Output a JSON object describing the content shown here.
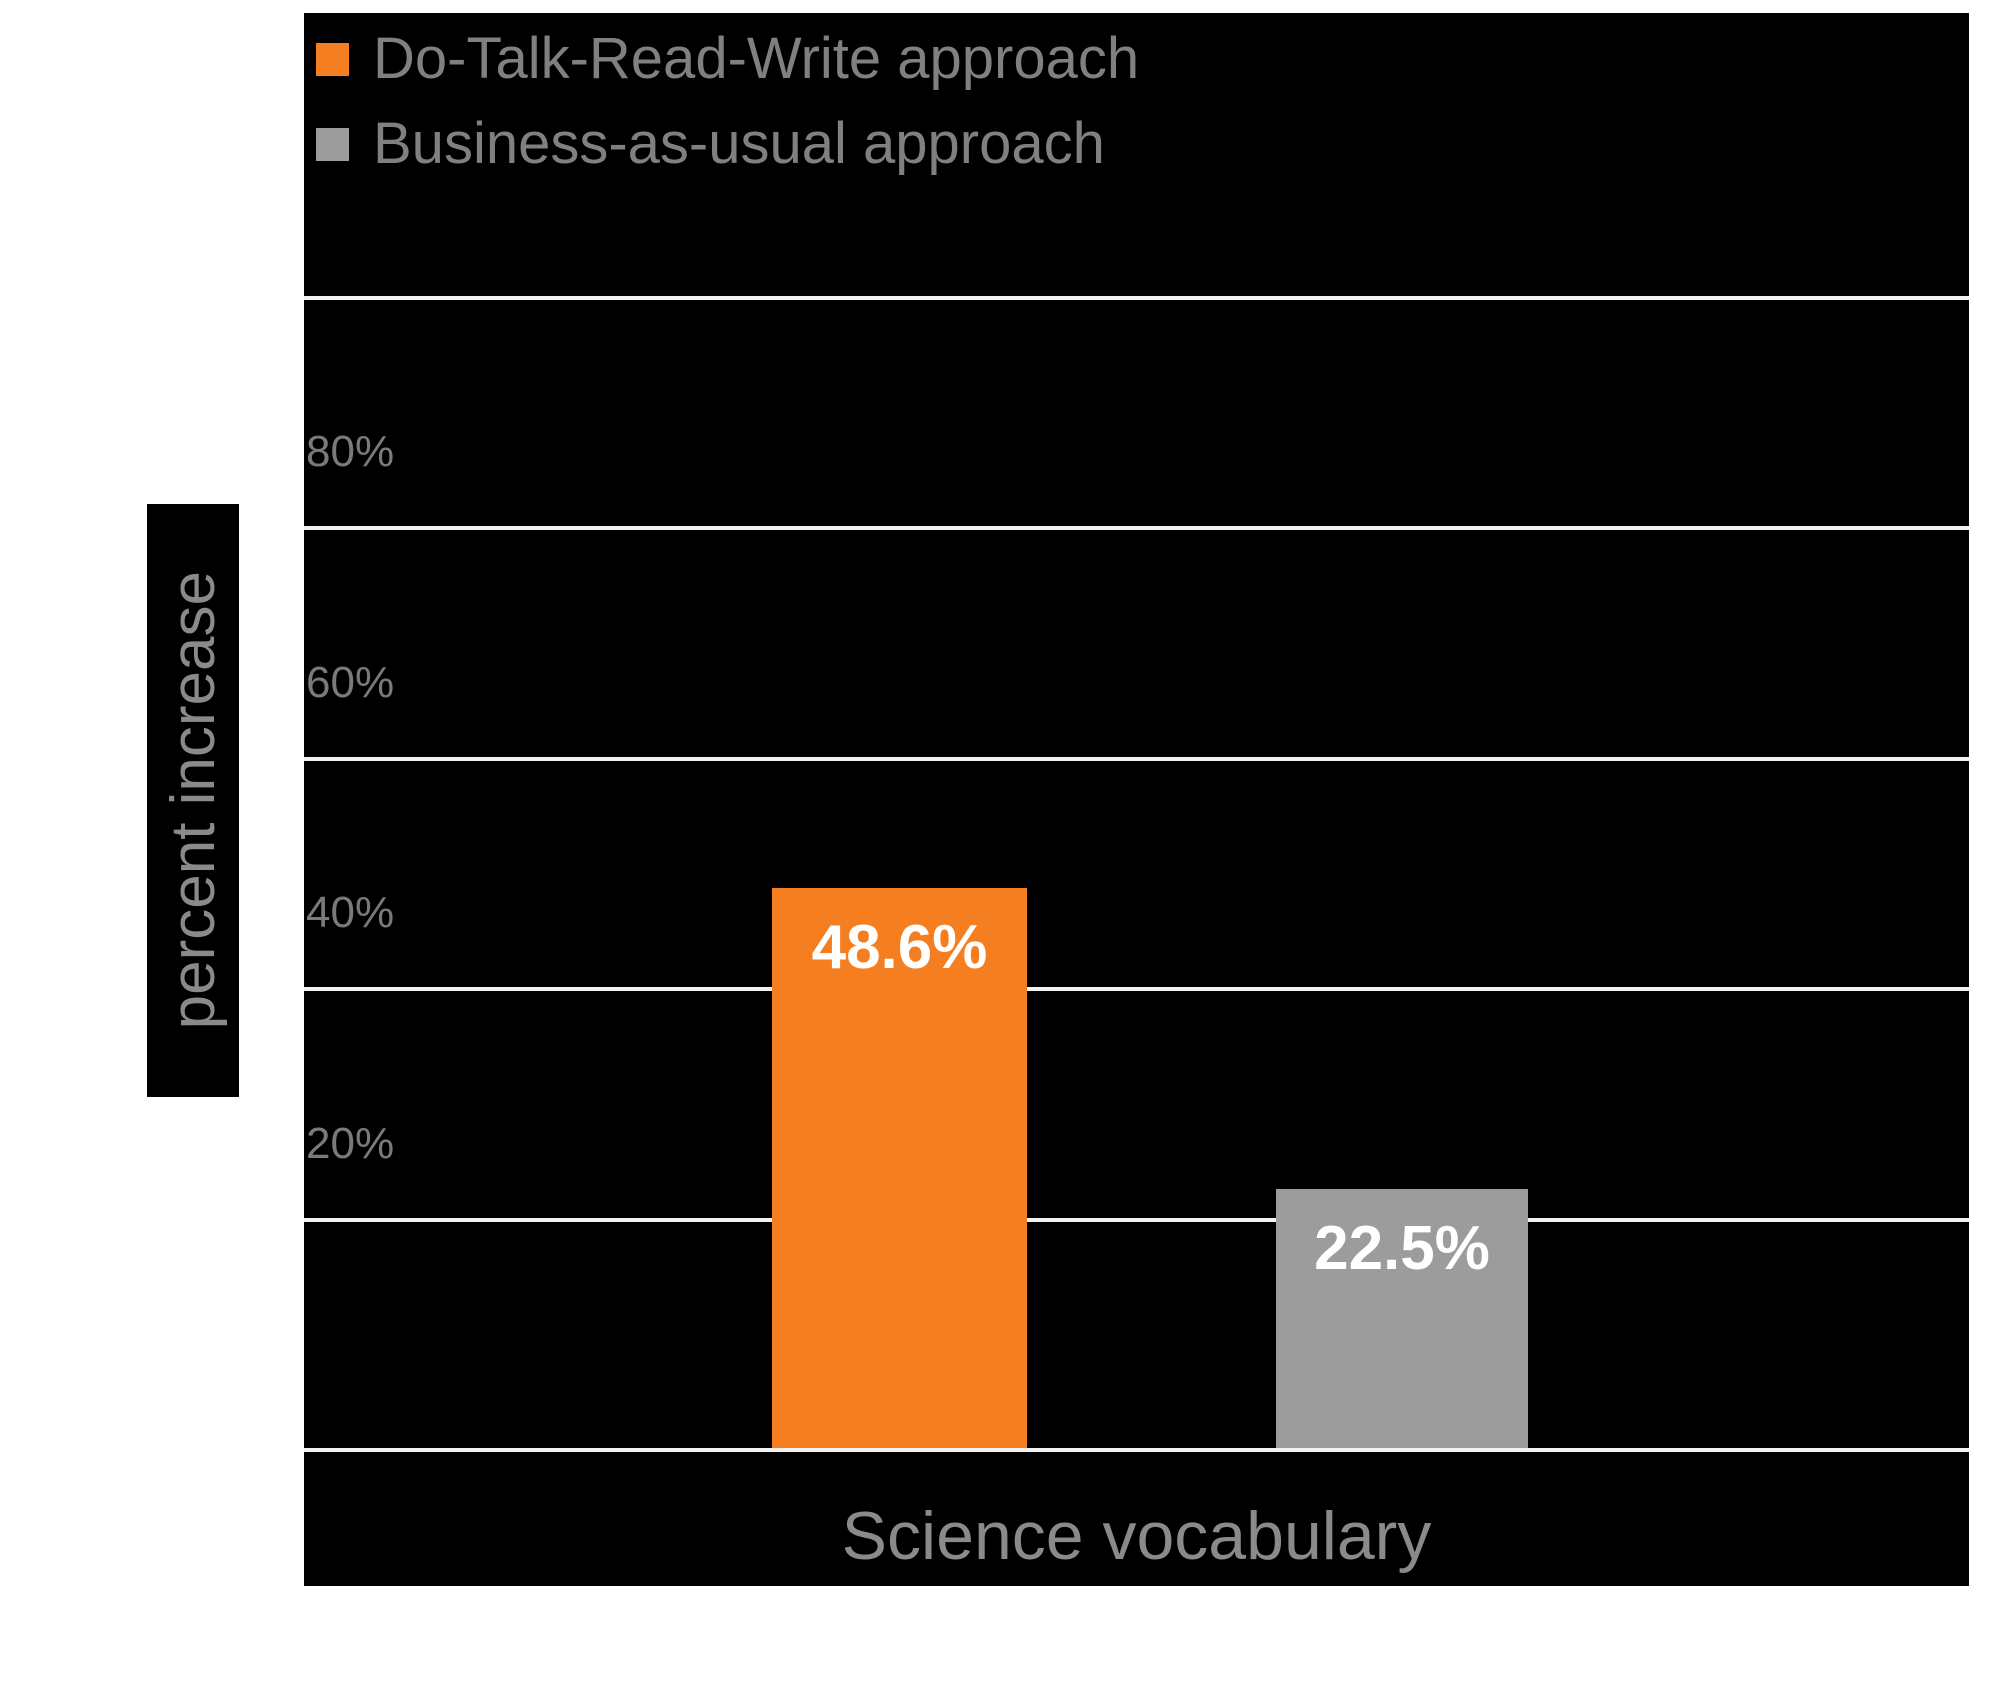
{
  "chart_data": {
    "type": "bar",
    "title": "",
    "categories": [
      "Science vocabulary"
    ],
    "series": [
      {
        "name": "Do-Talk-Read-Write approach",
        "values": [
          48.6
        ],
        "data_label": "48.6%",
        "color": "#f57e20"
      },
      {
        "name": "Business-as-usual approach",
        "values": [
          22.5
        ],
        "data_label": "22.5%",
        "color": "#9c9c9c"
      }
    ],
    "xlabel": "Science vocabulary",
    "ylabel": "percent increase",
    "ylim": [
      0,
      100
    ],
    "yticks": [
      80,
      60,
      40,
      20
    ],
    "ytick_labels": [
      "80%",
      "60%",
      "40%",
      "20%"
    ],
    "gridline_values": [
      100,
      80,
      60,
      40,
      20,
      0
    ],
    "grid": true,
    "legend_position": "top-left",
    "colors": {
      "plot_background": "#000000",
      "page_background": "#ffffff",
      "gridline": "#f2f2f2",
      "tick_text": "#7a7a7a",
      "legend_text": "#808080",
      "axis_label_text": "#8a8a8a",
      "bar_label_text": "#ffffff"
    }
  }
}
